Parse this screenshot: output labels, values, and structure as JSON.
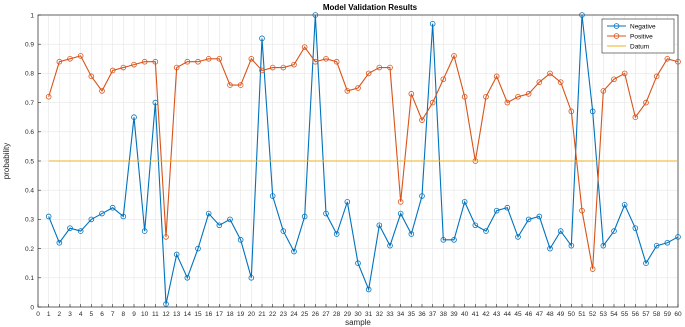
{
  "chart_data": {
    "type": "line",
    "title": "Model Validation Results",
    "xlabel": "sample",
    "ylabel": "probability",
    "xlim": [
      0,
      60
    ],
    "ylim": [
      0,
      1
    ],
    "x_ticks": [
      0,
      1,
      2,
      3,
      4,
      5,
      6,
      7,
      8,
      9,
      10,
      11,
      12,
      13,
      14,
      15,
      16,
      17,
      18,
      19,
      20,
      21,
      22,
      23,
      24,
      25,
      26,
      27,
      28,
      29,
      30,
      31,
      32,
      33,
      34,
      35,
      36,
      37,
      38,
      39,
      40,
      41,
      42,
      43,
      44,
      45,
      46,
      47,
      48,
      49,
      50,
      51,
      52,
      53,
      54,
      55,
      56,
      57,
      58,
      59,
      60
    ],
    "y_ticks": [
      0,
      0.1,
      0.2,
      0.3,
      0.4,
      0.5,
      0.6,
      0.7,
      0.8,
      0.9,
      1
    ],
    "y_tick_labels": [
      "0",
      "0.1",
      "0.2",
      "0.3",
      "0.4",
      "0.5",
      "0.6",
      "0.7",
      "0.8",
      "0.9",
      "1"
    ],
    "grid": true,
    "legend_position": "top-right",
    "x": [
      1,
      2,
      3,
      4,
      5,
      6,
      7,
      8,
      9,
      10,
      11,
      12,
      13,
      14,
      15,
      16,
      17,
      18,
      19,
      20,
      21,
      22,
      23,
      24,
      25,
      26,
      27,
      28,
      29,
      30,
      31,
      32,
      33,
      34,
      35,
      36,
      37,
      38,
      39,
      40,
      41,
      42,
      43,
      44,
      45,
      46,
      47,
      48,
      49,
      50,
      51,
      52,
      53,
      54,
      55,
      56,
      57,
      58,
      59,
      60
    ],
    "series": [
      {
        "name": "Negative",
        "color": "#0072BD",
        "marker": "circle",
        "values": [
          0.31,
          0.22,
          0.27,
          0.26,
          0.3,
          0.32,
          0.34,
          0.31,
          0.65,
          0.26,
          0.7,
          0.01,
          0.18,
          0.1,
          0.2,
          0.32,
          0.28,
          0.3,
          0.23,
          0.1,
          0.92,
          0.38,
          0.26,
          0.19,
          0.31,
          1.0,
          0.32,
          0.25,
          0.36,
          0.15,
          0.06,
          0.28,
          0.21,
          0.32,
          0.25,
          0.38,
          0.97,
          0.23,
          0.23,
          0.36,
          0.28,
          0.26,
          0.33,
          0.34,
          0.24,
          0.3,
          0.31,
          0.2,
          0.26,
          0.21,
          1.0,
          0.67,
          0.21,
          0.26,
          0.35,
          0.27,
          0.15,
          0.21,
          0.22,
          0.24
        ]
      },
      {
        "name": "Positive",
        "color": "#D95319",
        "marker": "circle",
        "values": [
          0.72,
          0.84,
          0.85,
          0.86,
          0.79,
          0.74,
          0.81,
          0.82,
          0.83,
          0.84,
          0.84,
          0.24,
          0.82,
          0.84,
          0.84,
          0.85,
          0.85,
          0.76,
          0.76,
          0.85,
          0.81,
          0.82,
          0.82,
          0.83,
          0.89,
          0.84,
          0.85,
          0.84,
          0.74,
          0.75,
          0.8,
          0.82,
          0.82,
          0.36,
          0.73,
          0.64,
          0.7,
          0.78,
          0.86,
          0.72,
          0.5,
          0.72,
          0.79,
          0.7,
          0.72,
          0.73,
          0.77,
          0.8,
          0.77,
          0.67,
          0.33,
          0.13,
          0.74,
          0.78,
          0.8,
          0.65,
          0.7,
          0.79,
          0.85,
          0.84
        ]
      },
      {
        "name": "Datum",
        "color": "#EDB120",
        "marker": "none",
        "values": [
          0.5,
          0.5,
          0.5,
          0.5,
          0.5,
          0.5,
          0.5,
          0.5,
          0.5,
          0.5,
          0.5,
          0.5,
          0.5,
          0.5,
          0.5,
          0.5,
          0.5,
          0.5,
          0.5,
          0.5,
          0.5,
          0.5,
          0.5,
          0.5,
          0.5,
          0.5,
          0.5,
          0.5,
          0.5,
          0.5,
          0.5,
          0.5,
          0.5,
          0.5,
          0.5,
          0.5,
          0.5,
          0.5,
          0.5,
          0.5,
          0.5,
          0.5,
          0.5,
          0.5,
          0.5,
          0.5,
          0.5,
          0.5,
          0.5,
          0.5,
          0.5,
          0.5,
          0.5,
          0.5,
          0.5,
          0.5,
          0.5,
          0.5,
          0.5,
          0.5
        ]
      }
    ]
  }
}
